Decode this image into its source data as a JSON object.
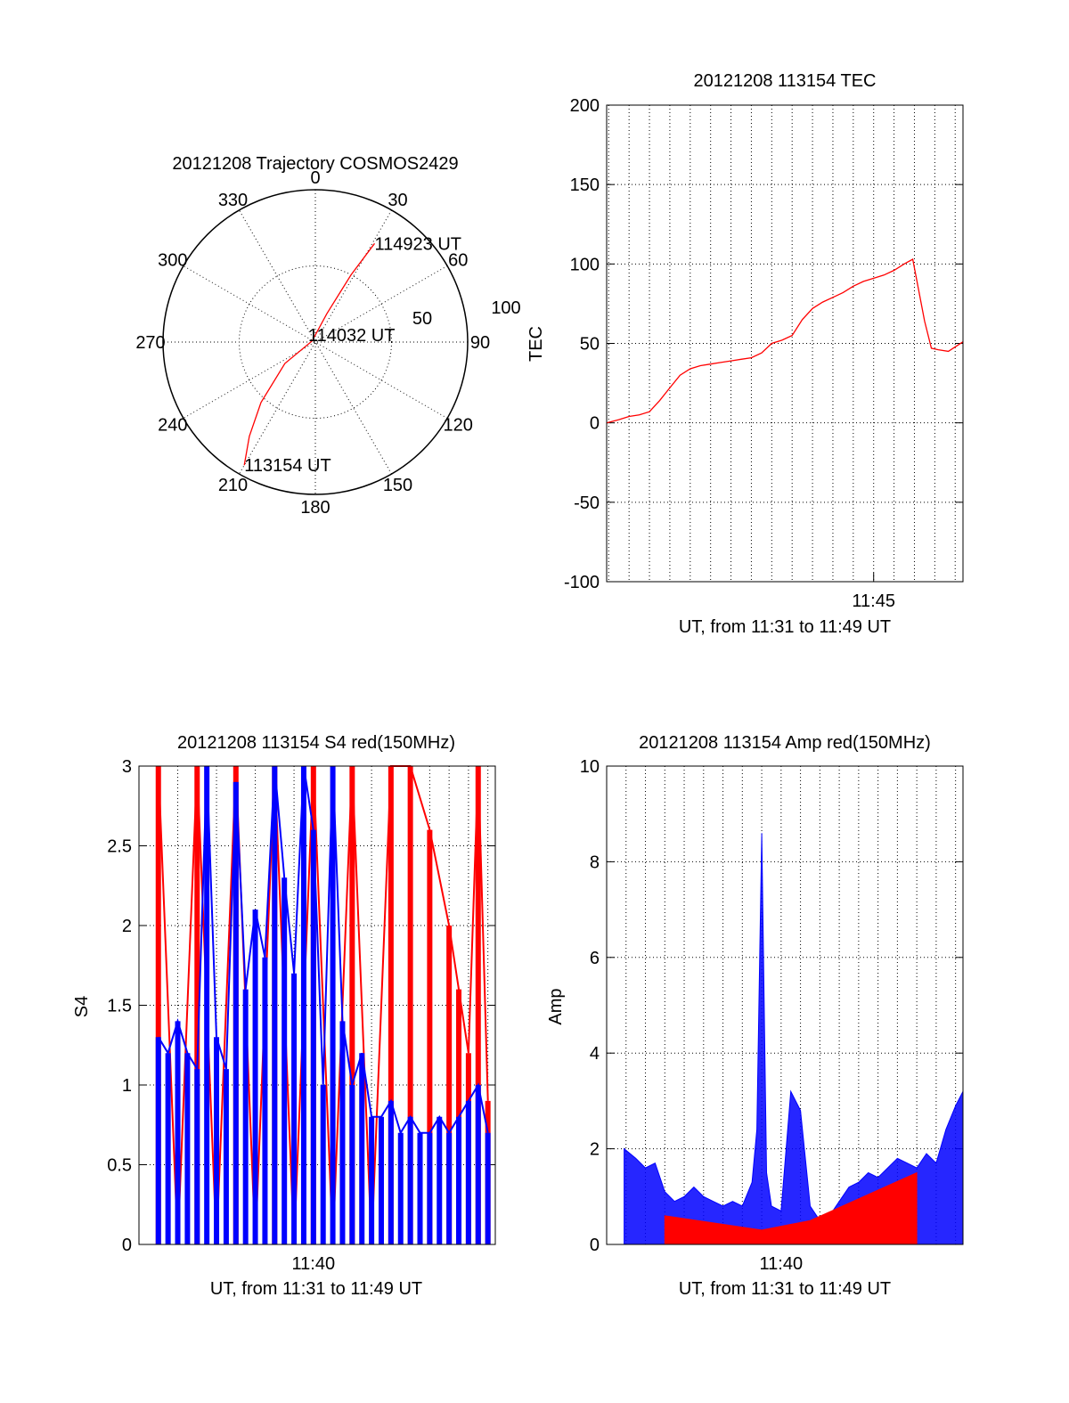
{
  "colors": {
    "primary": "#ff0000",
    "secondary": "#0000ff",
    "axis": "#000000"
  },
  "chart_data": [
    {
      "id": "trajectory",
      "type": "scatter",
      "polar": true,
      "title": "20121208 Trajectory COSMOS2429",
      "angle_labels": [
        "0",
        "30",
        "60",
        "90",
        "120",
        "150",
        "180",
        "210",
        "240",
        "270",
        "300",
        "330"
      ],
      "radius_labels": [
        "50",
        "100"
      ],
      "rlim": [
        0,
        100
      ],
      "grid": true,
      "track": [
        {
          "az": 210,
          "el": 6
        },
        {
          "az": 215,
          "el": 22
        },
        {
          "az": 222,
          "el": 42
        },
        {
          "az": 235,
          "el": 68
        },
        {
          "az": 290,
          "el": 88
        },
        {
          "az": 22,
          "el": 72
        },
        {
          "az": 28,
          "el": 45
        },
        {
          "az": 31,
          "el": 22
        }
      ],
      "annotations": [
        {
          "text": "114923 UT",
          "az": 31,
          "el": 22
        },
        {
          "text": "114032 UT",
          "az": 0,
          "el": 90
        },
        {
          "text": "113154 UT",
          "az": 210,
          "el": 6
        }
      ]
    },
    {
      "id": "tec",
      "type": "line",
      "title": "20121208 113154 TEC",
      "xlabel": "UT, from 11:31 to 11:49 UT",
      "ylabel": "TEC",
      "xlim": [
        "11:31:54",
        "11:49:23"
      ],
      "ylim": [
        -100,
        200
      ],
      "ytick_labels": [
        "-100",
        "-50",
        "0",
        "50",
        "100",
        "150",
        "200"
      ],
      "xtick_labels": [
        "11:45"
      ],
      "grid": true,
      "series": [
        {
          "color": "#ff0000",
          "x": [
            "11:31:54",
            "11:32:30",
            "11:33:00",
            "11:33:30",
            "11:34:00",
            "11:34:30",
            "11:35:00",
            "11:35:30",
            "11:36:00",
            "11:36:30",
            "11:37:00",
            "11:37:30",
            "11:38:00",
            "11:38:30",
            "11:39:00",
            "11:39:30",
            "11:40:00",
            "11:40:30",
            "11:41:00",
            "11:41:30",
            "11:42:00",
            "11:42:30",
            "11:43:00",
            "11:43:30",
            "11:44:00",
            "11:44:30",
            "11:45:00",
            "11:45:30",
            "11:46:00",
            "11:46:30",
            "11:46:55",
            "11:47:30",
            "11:47:50",
            "11:48:10",
            "11:48:40",
            "11:49:23"
          ],
          "y": [
            0,
            2,
            4,
            5,
            7,
            14,
            22,
            30,
            34,
            36,
            37,
            38,
            39,
            40,
            41,
            44,
            50,
            52,
            55,
            65,
            72,
            76,
            79,
            82,
            86,
            89,
            91,
            93,
            96,
            100,
            103,
            64,
            47,
            46,
            45,
            51
          ]
        }
      ]
    },
    {
      "id": "s4",
      "type": "line",
      "title": "20121208 113154 S4 red(150MHz)",
      "xlabel": "UT, from 11:31 to 11:49 UT",
      "ylabel": "S4",
      "xlim": [
        "11:31:00",
        "11:49:23"
      ],
      "ylim": [
        0,
        3
      ],
      "ytick_labels": [
        "0",
        "0.5",
        "1",
        "1.5",
        "2",
        "2.5",
        "3"
      ],
      "xtick_labels": [
        "11:40"
      ],
      "grid": true,
      "series": [
        {
          "color": "#ff0000",
          "x": [
            "11:32:00",
            "11:33:00",
            "11:34:00",
            "11:35:00",
            "11:36:00",
            "11:37:00",
            "11:38:00",
            "11:39:00",
            "11:40:00",
            "11:41:00",
            "11:42:00",
            "11:43:00",
            "11:44:00",
            "11:45:00",
            "11:46:00",
            "11:47:00",
            "11:47:30",
            "11:48:00",
            "11:48:30",
            "11:49:00"
          ],
          "y": [
            3,
            0,
            3,
            0,
            3,
            0,
            3,
            0,
            3,
            0,
            3,
            0,
            3,
            3,
            2.6,
            2,
            1.6,
            1.2,
            3,
            0.9
          ]
        },
        {
          "color": "#0000ff",
          "x": [
            "11:32:00",
            "11:32:30",
            "11:33:00",
            "11:33:30",
            "11:34:00",
            "11:34:30",
            "11:35:00",
            "11:35:30",
            "11:36:00",
            "11:36:30",
            "11:37:00",
            "11:37:30",
            "11:38:00",
            "11:38:30",
            "11:39:00",
            "11:39:30",
            "11:40:00",
            "11:40:30",
            "11:41:00",
            "11:41:30",
            "11:42:00",
            "11:42:30",
            "11:43:00",
            "11:43:30",
            "11:44:00",
            "11:44:30",
            "11:45:00",
            "11:45:30",
            "11:46:00",
            "11:46:30",
            "11:47:00",
            "11:47:30",
            "11:48:00",
            "11:48:30",
            "11:49:00"
          ],
          "y": [
            1.3,
            1.2,
            1.4,
            1.2,
            1.1,
            3,
            1.3,
            1.1,
            2.9,
            1.6,
            2.1,
            1.8,
            3,
            2.3,
            1.7,
            3,
            2.6,
            1.0,
            3,
            1.4,
            1.0,
            1.2,
            0.8,
            0.8,
            0.9,
            0.7,
            0.8,
            0.7,
            0.7,
            0.8,
            0.7,
            0.8,
            0.9,
            1.0,
            0.7
          ]
        }
      ]
    },
    {
      "id": "amp",
      "type": "line",
      "title": "20121208 113154 Amp red(150MHz)",
      "xlabel": "UT, from 11:31 to 11:49 UT",
      "ylabel": "Amp",
      "xlim": [
        "11:31:00",
        "11:49:23"
      ],
      "ylim": [
        0,
        10
      ],
      "ytick_labels": [
        "0",
        "2",
        "4",
        "6",
        "8",
        "10"
      ],
      "xtick_labels": [
        "11:40"
      ],
      "grid": true,
      "series": [
        {
          "color": "#0000ff",
          "x": [
            "11:31:54",
            "11:32:30",
            "11:33:00",
            "11:33:30",
            "11:34:00",
            "11:34:30",
            "11:35:00",
            "11:35:30",
            "11:36:00",
            "11:36:30",
            "11:37:00",
            "11:37:30",
            "11:38:00",
            "11:38:30",
            "11:38:45",
            "11:39:00",
            "11:39:15",
            "11:39:30",
            "11:40:00",
            "11:40:30",
            "11:41:00",
            "11:41:30",
            "11:42:00",
            "11:42:30",
            "11:43:00",
            "11:43:30",
            "11:44:00",
            "11:44:30",
            "11:45:00",
            "11:45:30",
            "11:46:00",
            "11:46:30",
            "11:47:00",
            "11:47:30",
            "11:48:00",
            "11:48:30",
            "11:49:00",
            "11:49:23"
          ],
          "y": [
            2.0,
            1.8,
            1.6,
            1.7,
            1.1,
            0.9,
            1.0,
            1.2,
            1.0,
            0.9,
            0.8,
            0.9,
            0.8,
            1.3,
            2.4,
            8.6,
            1.5,
            0.8,
            0.7,
            3.2,
            2.8,
            0.8,
            0.5,
            0.6,
            0.9,
            1.2,
            1.3,
            1.5,
            1.4,
            1.6,
            1.8,
            1.7,
            1.6,
            1.9,
            1.7,
            2.4,
            2.9,
            3.2
          ]
        },
        {
          "color": "#ff0000",
          "x": [
            "11:34:00",
            "11:39:00",
            "11:41:30",
            "11:47:00"
          ],
          "y": [
            0.6,
            0.3,
            0.5,
            1.5
          ]
        }
      ]
    }
  ]
}
